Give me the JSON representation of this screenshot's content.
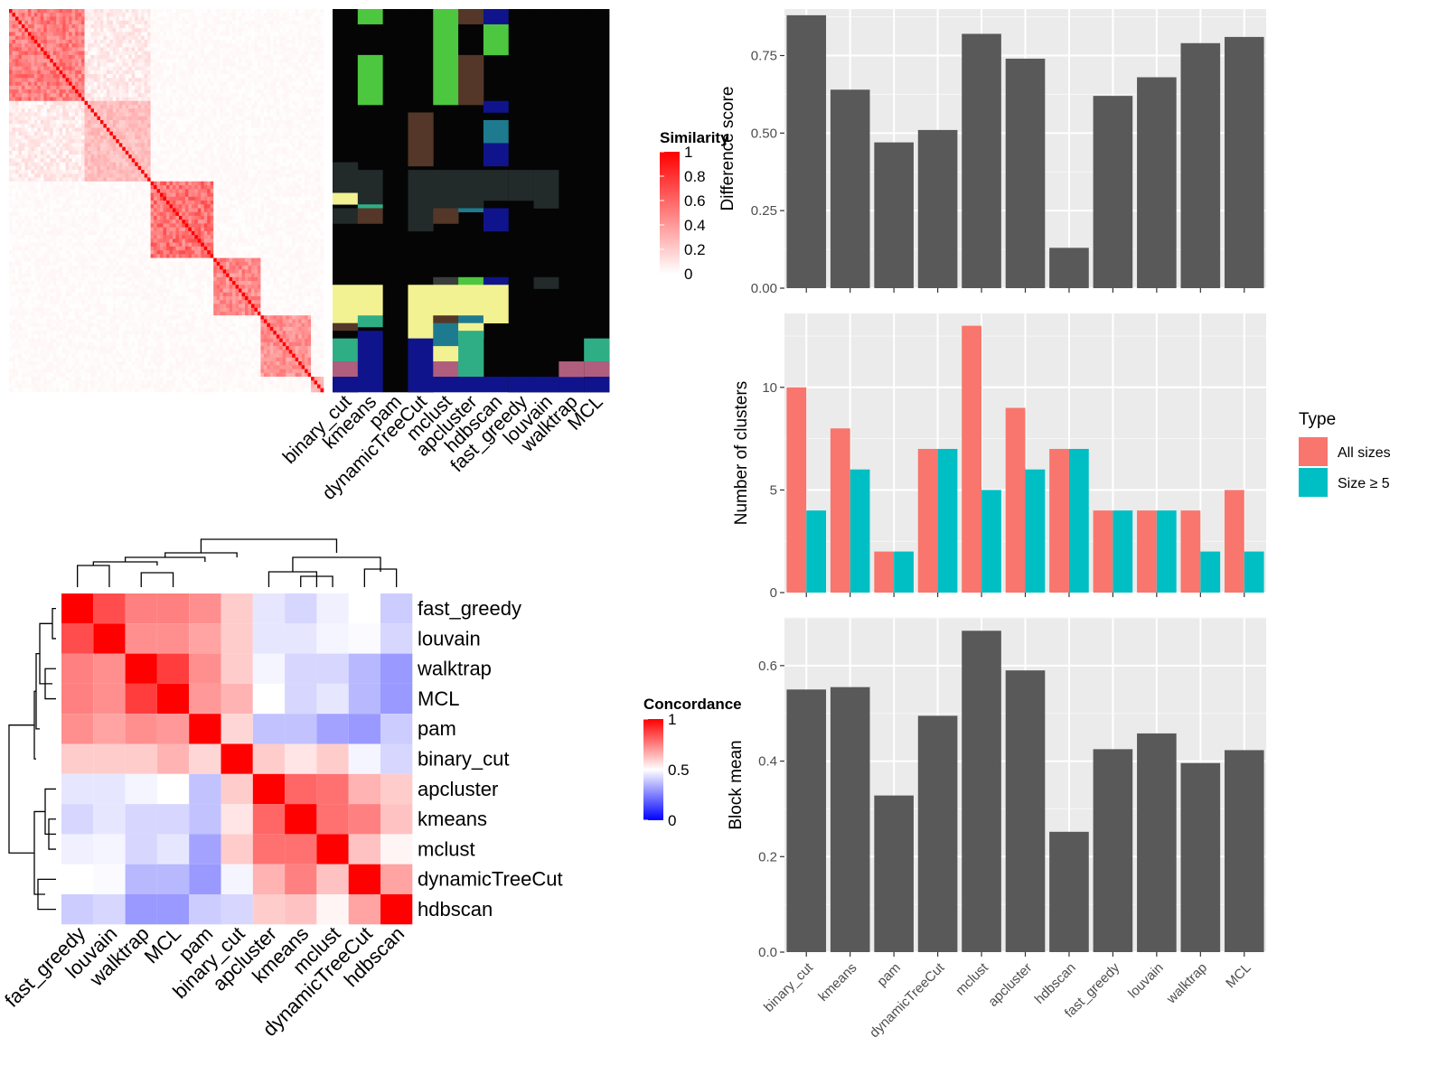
{
  "legends": {
    "similarity_title": "Similarity",
    "similarity_ticks": [
      "0",
      "0.2",
      "0.4",
      "0.6",
      "0.8",
      "1"
    ],
    "concordance_title": "Concordance",
    "concordance_ticks": [
      "0",
      "0.5",
      "1"
    ],
    "type_title": "Type",
    "type_entries": [
      "All sizes",
      "Size ≥ 5"
    ],
    "colors": {
      "similarity_low": "#ffffff",
      "similarity_high": "#ff0000",
      "concordance_low": "#0000ff",
      "concordance_mid": "#ffffff",
      "concordance_high": "#ff0000",
      "all_sizes": "#f8766d",
      "size_ge_5": "#00bfc4",
      "bar_dark": "#595959",
      "panel_bg": "#ebebeb"
    }
  },
  "chart_data": [
    {
      "type": "heatmap",
      "name": "similarity-matrix",
      "title": "",
      "legend_title": "Similarity",
      "color_range": [
        0,
        1
      ],
      "cluster_blocks": [
        {
          "start": 0,
          "end": 24,
          "within": 0.6
        },
        {
          "start": 24,
          "end": 45,
          "within": 0.3
        },
        {
          "start": 45,
          "end": 65,
          "within": 0.65
        },
        {
          "start": 65,
          "end": 80,
          "within": 0.55
        },
        {
          "start": 80,
          "end": 96,
          "within": 0.5
        },
        {
          "start": 96,
          "end": 100,
          "within": 0.4
        }
      ],
      "size": 100
    },
    {
      "type": "heatmap",
      "name": "cluster-membership",
      "columns": [
        "binary_cut",
        "kmeans",
        "pam",
        "dynamicTreeCut",
        "mclust",
        "apcluster",
        "hdbscan",
        "fast_greedy",
        "louvain",
        "walktrap",
        "MCL"
      ]
    },
    {
      "type": "heatmap",
      "name": "concordance-matrix",
      "rows": [
        "fast_greedy",
        "louvain",
        "walktrap",
        "MCL",
        "pam",
        "binary_cut",
        "apcluster",
        "kmeans",
        "mclust",
        "dynamicTreeCut",
        "hdbscan"
      ],
      "columns": [
        "fast_greedy",
        "louvain",
        "walktrap",
        "MCL",
        "pam",
        "binary_cut",
        "apcluster",
        "kmeans",
        "mclust",
        "dynamicTreeCut",
        "hdbscan"
      ],
      "legend_title": "Concordance",
      "color_range": [
        0,
        1
      ],
      "values": [
        [
          1.0,
          0.85,
          0.75,
          0.75,
          0.72,
          0.6,
          0.45,
          0.42,
          0.47,
          0.5,
          0.4
        ],
        [
          0.85,
          1.0,
          0.72,
          0.72,
          0.68,
          0.6,
          0.45,
          0.45,
          0.48,
          0.49,
          0.42
        ],
        [
          0.75,
          0.72,
          1.0,
          0.88,
          0.72,
          0.6,
          0.48,
          0.42,
          0.42,
          0.36,
          0.3
        ],
        [
          0.75,
          0.72,
          0.88,
          1.0,
          0.7,
          0.65,
          0.5,
          0.42,
          0.45,
          0.36,
          0.3
        ],
        [
          0.72,
          0.68,
          0.72,
          0.7,
          1.0,
          0.58,
          0.38,
          0.38,
          0.32,
          0.3,
          0.4
        ],
        [
          0.6,
          0.6,
          0.6,
          0.65,
          0.58,
          1.0,
          0.6,
          0.55,
          0.6,
          0.48,
          0.42
        ],
        [
          0.45,
          0.45,
          0.48,
          0.5,
          0.38,
          0.6,
          1.0,
          0.8,
          0.78,
          0.65,
          0.6
        ],
        [
          0.42,
          0.45,
          0.42,
          0.42,
          0.38,
          0.55,
          0.8,
          1.0,
          0.78,
          0.75,
          0.62
        ],
        [
          0.47,
          0.48,
          0.42,
          0.45,
          0.32,
          0.6,
          0.78,
          0.78,
          1.0,
          0.62,
          0.52
        ],
        [
          0.5,
          0.49,
          0.36,
          0.36,
          0.3,
          0.48,
          0.65,
          0.75,
          0.62,
          1.0,
          0.68
        ],
        [
          0.4,
          0.42,
          0.3,
          0.3,
          0.4,
          0.42,
          0.6,
          0.62,
          0.52,
          0.68,
          1.0
        ]
      ]
    },
    {
      "type": "bar",
      "name": "difference-score",
      "categories": [
        "binary_cut",
        "kmeans",
        "pam",
        "dynamicTreeCut",
        "mclust",
        "apcluster",
        "hdbscan",
        "fast_greedy",
        "louvain",
        "walktrap",
        "MCL"
      ],
      "values": [
        0.88,
        0.64,
        0.47,
        0.51,
        0.82,
        0.74,
        0.13,
        0.62,
        0.68,
        0.79,
        0.81
      ],
      "xlabel": "",
      "ylabel": "Difference score",
      "ylim": [
        0,
        0.9
      ],
      "yticks": [
        "0.00",
        "0.25",
        "0.50",
        "0.75"
      ],
      "ytick_values": [
        0,
        0.25,
        0.5,
        0.75
      ]
    },
    {
      "type": "bar",
      "name": "number-of-clusters",
      "categories": [
        "binary_cut",
        "kmeans",
        "pam",
        "dynamicTreeCut",
        "mclust",
        "apcluster",
        "hdbscan",
        "fast_greedy",
        "louvain",
        "walktrap",
        "MCL"
      ],
      "series": [
        {
          "name": "All sizes",
          "values": [
            10,
            8,
            2,
            7,
            13,
            9,
            7,
            4,
            4,
            4,
            5
          ]
        },
        {
          "name": "Size ≥ 5",
          "values": [
            4,
            6,
            2,
            7,
            5,
            6,
            7,
            4,
            4,
            2,
            2
          ]
        }
      ],
      "xlabel": "",
      "ylabel": "Number of clusters",
      "ylim": [
        0,
        13.6
      ],
      "yticks": [
        "0",
        "5",
        "10"
      ],
      "ytick_values": [
        0,
        5,
        10
      ],
      "legend": "right"
    },
    {
      "type": "bar",
      "name": "block-mean",
      "categories": [
        "binary_cut",
        "kmeans",
        "pam",
        "dynamicTreeCut",
        "mclust",
        "apcluster",
        "hdbscan",
        "fast_greedy",
        "louvain",
        "walktrap",
        "MCL"
      ],
      "values": [
        0.55,
        0.555,
        0.328,
        0.495,
        0.673,
        0.59,
        0.252,
        0.425,
        0.458,
        0.396,
        0.423
      ],
      "xlabel": "",
      "ylabel": "Block mean",
      "ylim": [
        0,
        0.7
      ],
      "yticks": [
        "0.0",
        "0.2",
        "0.4",
        "0.6"
      ],
      "ytick_values": [
        0,
        0.2,
        0.4,
        0.6
      ]
    }
  ]
}
